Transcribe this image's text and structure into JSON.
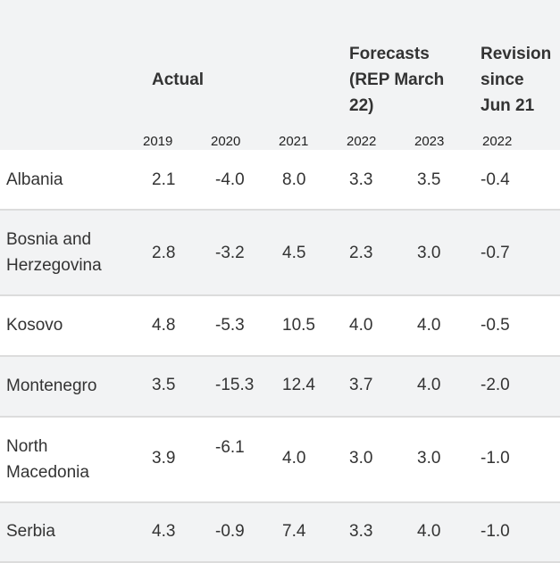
{
  "header": {
    "group_actual": "Actual",
    "group_forecasts_lines": [
      "Forecasts",
      "(REP March",
      "22)"
    ],
    "group_revision_lines": [
      "Revision",
      "since",
      "Jun 21"
    ],
    "years": [
      "2019",
      "2020",
      "2021",
      "2022",
      "2023",
      "2022"
    ]
  },
  "rows": [
    {
      "country_lines": [
        "Albania"
      ],
      "values": [
        "2.1",
        "-4.0",
        "8.0",
        "3.3",
        "3.5",
        "-0.4"
      ]
    },
    {
      "country_lines": [
        "Bosnia and",
        "Herzegovina"
      ],
      "values": [
        "2.8",
        "-3.2",
        "4.5",
        "2.3",
        "3.0",
        "-0.7"
      ]
    },
    {
      "country_lines": [
        "Kosovo"
      ],
      "values": [
        "4.8",
        "-5.3",
        "10.5",
        "4.0",
        "4.0",
        "-0.5"
      ]
    },
    {
      "country_lines": [
        "Montenegro"
      ],
      "values": [
        "3.5",
        "-15.3",
        "12.4",
        "3.7",
        "4.0",
        "-2.0"
      ]
    },
    {
      "country_lines": [
        "North",
        "Macedonia"
      ],
      "values": [
        "3.9",
        "-6.1",
        "4.0",
        "3.0",
        "3.0",
        "-1.0"
      ]
    },
    {
      "country_lines": [
        "Serbia"
      ],
      "values": [
        "4.3",
        "-0.9",
        "7.4",
        "3.3",
        "4.0",
        "-1.0"
      ]
    }
  ]
}
